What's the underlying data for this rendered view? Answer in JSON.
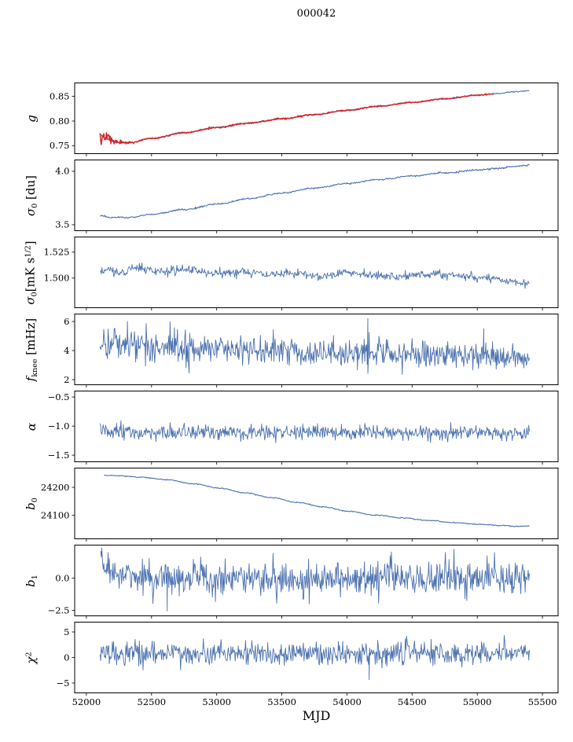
{
  "chart_data": {
    "type": "line",
    "title": "000042",
    "xlabel": "MJD",
    "xlim": [
      51910,
      55620
    ],
    "x_ticks": [
      52000,
      52500,
      53000,
      53500,
      54000,
      54500,
      55000,
      55500
    ],
    "x_tick_labels": [
      "52000",
      "52500",
      "53000",
      "53500",
      "54000",
      "54500",
      "55000",
      "55500"
    ],
    "colors": {
      "line_blue": "#4c72b0",
      "line_red": "#d62728",
      "axis": "#000000"
    },
    "panels": [
      {
        "id": "g",
        "label": [
          {
            "t": "g",
            "s": "i"
          }
        ],
        "ylim": [
          0.733,
          0.878
        ],
        "yticks": [
          0.75,
          0.8,
          0.85
        ],
        "ytick_labels": [
          "0.75",
          "0.80",
          "0.85"
        ],
        "series": [
          {
            "name": "gain-fit-blue",
            "color": "#4c72b0",
            "width": 1.1,
            "seed": 11,
            "n": 650,
            "x_start": 52105,
            "x_end": 55400,
            "trend": [
              [
                52105,
                0.774
              ],
              [
                52150,
                0.7638
              ],
              [
                52230,
                0.7566
              ],
              [
                52330,
                0.756
              ],
              [
                52500,
                0.7648
              ],
              [
                52750,
                0.7762
              ],
              [
                53000,
                0.7868
              ],
              [
                53250,
                0.796
              ],
              [
                53500,
                0.8046
              ],
              [
                53750,
                0.813
              ],
              [
                54000,
                0.8218
              ],
              [
                54250,
                0.83
              ],
              [
                54500,
                0.8378
              ],
              [
                54750,
                0.845
              ],
              [
                55000,
                0.8522
              ],
              [
                55150,
                0.8556
              ],
              [
                55280,
                0.859
              ],
              [
                55400,
                0.8618
              ]
            ],
            "noise": [
              [
                52105,
                0.0012
              ],
              [
                52300,
                0.0007
              ],
              [
                55400,
                0.0006
              ]
            ]
          },
          {
            "name": "gain-fit-red",
            "color": "#d62728",
            "width": 1.5,
            "seed": 5,
            "n": 620,
            "x_start": 52105,
            "x_end": 55120,
            "trend": [
              [
                52105,
                0.774
              ],
              [
                52150,
                0.7638
              ],
              [
                52230,
                0.7566
              ],
              [
                52330,
                0.756
              ],
              [
                52500,
                0.7648
              ],
              [
                52750,
                0.7762
              ],
              [
                53000,
                0.7868
              ],
              [
                53250,
                0.796
              ],
              [
                53500,
                0.8046
              ],
              [
                53750,
                0.813
              ],
              [
                54000,
                0.8218
              ],
              [
                54250,
                0.83
              ],
              [
                54500,
                0.8378
              ],
              [
                54750,
                0.845
              ],
              [
                55000,
                0.8522
              ],
              [
                55120,
                0.855
              ]
            ],
            "noise": [
              [
                52105,
                0.0115
              ],
              [
                52150,
                0.0075
              ],
              [
                52210,
                0.0045
              ],
              [
                52290,
                0.0018
              ],
              [
                52400,
                0.0008
              ],
              [
                55120,
                0.0006
              ]
            ]
          }
        ]
      },
      {
        "id": "sigma0-du",
        "label": [
          {
            "t": "σ",
            "s": "i"
          },
          {
            "t": "0",
            "s": "sub"
          },
          {
            "t": " [du]",
            "s": "n"
          }
        ],
        "ylim": [
          3.44,
          4.11
        ],
        "yticks": [
          3.5,
          4.0
        ],
        "ytick_labels": [
          "3.5",
          "4.0"
        ],
        "series": [
          {
            "name": "sigma0-du",
            "color": "#4c72b0",
            "width": 1.1,
            "seed": 21,
            "n": 650,
            "x_start": 52105,
            "x_end": 55400,
            "trend": [
              [
                52105,
                3.586
              ],
              [
                52200,
                3.566
              ],
              [
                52330,
                3.568
              ],
              [
                52500,
                3.597
              ],
              [
                52750,
                3.641
              ],
              [
                53000,
                3.692
              ],
              [
                53250,
                3.745
              ],
              [
                53500,
                3.797
              ],
              [
                53750,
                3.843
              ],
              [
                54000,
                3.885
              ],
              [
                54250,
                3.923
              ],
              [
                54500,
                3.956
              ],
              [
                54750,
                3.986
              ],
              [
                55000,
                4.012
              ],
              [
                55150,
                4.028
              ],
              [
                55300,
                4.047
              ],
              [
                55400,
                4.058
              ]
            ],
            "noise": [
              [
                52105,
                0.004
              ],
              [
                55400,
                0.004
              ]
            ]
          }
        ]
      },
      {
        "id": "sigma0-noise",
        "label": [
          {
            "t": "σ",
            "s": "i"
          },
          {
            "t": "0",
            "s": "sub"
          },
          {
            "t": "[mK s",
            "s": "n"
          },
          {
            "t": "1/2",
            "s": "sup"
          },
          {
            "t": "]",
            "s": "n"
          }
        ],
        "ylim": [
          1.471,
          1.54
        ],
        "yticks": [
          1.5,
          1.525
        ],
        "ytick_labels": [
          "1.500",
          "1.525"
        ],
        "series": [
          {
            "name": "sigma0-noise",
            "color": "#4c72b0",
            "width": 0.9,
            "seed": 31,
            "n": 700,
            "x_start": 52105,
            "x_end": 55400,
            "trend": [
              [
                52105,
                1.5055
              ],
              [
                52180,
                1.5085
              ],
              [
                52260,
                1.504
              ],
              [
                52360,
                1.511
              ],
              [
                52450,
                1.508
              ],
              [
                52600,
                1.5065
              ],
              [
                52800,
                1.508
              ],
              [
                53000,
                1.504
              ],
              [
                53200,
                1.5065
              ],
              [
                53400,
                1.503
              ],
              [
                53600,
                1.5048
              ],
              [
                53800,
                1.5022
              ],
              [
                54000,
                1.5055
              ],
              [
                54200,
                1.5032
              ],
              [
                54400,
                1.5012
              ],
              [
                54600,
                1.5038
              ],
              [
                54800,
                1.5028
              ],
              [
                55000,
                1.5008
              ],
              [
                55150,
                1.4992
              ],
              [
                55280,
                1.4975
              ],
              [
                55400,
                1.4938
              ]
            ],
            "noise": [
              [
                52105,
                0.0021
              ],
              [
                55400,
                0.0021
              ]
            ]
          }
        ]
      },
      {
        "id": "fknee",
        "label": [
          {
            "t": "f",
            "s": "i"
          },
          {
            "t": "knee",
            "s": "sub"
          },
          {
            "t": " [mHz]",
            "s": "n"
          }
        ],
        "ylim": [
          1.62,
          6.54
        ],
        "yticks": [
          2,
          4,
          6
        ],
        "ytick_labels": [
          "2",
          "4",
          "6"
        ],
        "series": [
          {
            "name": "fknee",
            "color": "#4c72b0",
            "width": 0.9,
            "seed": 41,
            "n": 700,
            "x_start": 52105,
            "x_end": 55400,
            "trend": [
              [
                52105,
                4.62
              ],
              [
                52300,
                4.45
              ],
              [
                52500,
                4.32
              ],
              [
                52800,
                4.2
              ],
              [
                53100,
                4.1
              ],
              [
                53400,
                4.0
              ],
              [
                53700,
                3.92
              ],
              [
                54000,
                3.85
              ],
              [
                54300,
                3.78
              ],
              [
                54600,
                3.7
              ],
              [
                54900,
                3.65
              ],
              [
                55200,
                3.6
              ],
              [
                55400,
                3.55
              ]
            ],
            "noise": [
              [
                52105,
                0.6
              ],
              [
                52700,
                0.52
              ],
              [
                53400,
                0.5
              ],
              [
                55400,
                0.47
              ]
            ],
            "spikes": [
              [
                52315,
                6.0
              ],
              [
                54160,
                6.2
              ],
              [
                55050,
                5.5
              ]
            ]
          }
        ]
      },
      {
        "id": "alpha",
        "label": [
          {
            "t": "α",
            "s": "i"
          }
        ],
        "ylim": [
          -1.62,
          -0.39
        ],
        "yticks": [
          -1.5,
          -1.0,
          -0.5
        ],
        "ytick_labels": [
          "−1.5",
          "−1.0",
          "−0.5"
        ],
        "series": [
          {
            "name": "alpha",
            "color": "#4c72b0",
            "width": 0.9,
            "seed": 51,
            "n": 700,
            "x_start": 52105,
            "x_end": 55400,
            "trend": [
              [
                52105,
                -1.098
              ],
              [
                52350,
                -1.115
              ],
              [
                54000,
                -1.118
              ],
              [
                55400,
                -1.124
              ]
            ],
            "noise": [
              [
                52105,
                0.082
              ],
              [
                52400,
                0.062
              ],
              [
                55400,
                0.062
              ]
            ]
          }
        ]
      },
      {
        "id": "b0",
        "label": [
          {
            "t": "b",
            "s": "i"
          },
          {
            "t": "0",
            "s": "sub"
          }
        ],
        "ylim": [
          24015,
          24270
        ],
        "yticks": [
          24100,
          24200
        ],
        "ytick_labels": [
          "24100",
          "24200"
        ],
        "series": [
          {
            "name": "b0",
            "color": "#4c72b0",
            "width": 1.1,
            "seed": 61,
            "n": 650,
            "x_start": 52135,
            "x_end": 55400,
            "trend": [
              [
                52135,
                24243
              ],
              [
                52260,
                24241
              ],
              [
                52420,
                24236
              ],
              [
                52620,
                24227
              ],
              [
                52820,
                24213
              ],
              [
                53020,
                24197
              ],
              [
                53220,
                24180
              ],
              [
                53420,
                24163
              ],
              [
                53620,
                24146
              ],
              [
                53820,
                24130
              ],
              [
                54020,
                24114
              ],
              [
                54220,
                24101
              ],
              [
                54420,
                24091
              ],
              [
                54620,
                24082
              ],
              [
                54820,
                24074
              ],
              [
                55020,
                24068
              ],
              [
                55170,
                24064
              ],
              [
                55300,
                24061
              ],
              [
                55400,
                24062
              ]
            ],
            "noise": [
              [
                52135,
                0.9
              ],
              [
                55400,
                0.9
              ]
            ]
          }
        ]
      },
      {
        "id": "b1",
        "label": [
          {
            "t": "b",
            "s": "i"
          },
          {
            "t": "1",
            "s": "sub"
          }
        ],
        "ylim": [
          -2.95,
          2.6
        ],
        "yticks": [
          0.0,
          -2.5
        ],
        "ytick_labels": [
          "0.0",
          "−2.5"
        ],
        "series": [
          {
            "name": "b1",
            "color": "#4c72b0",
            "width": 0.9,
            "seed": 71,
            "n": 700,
            "x_start": 52110,
            "x_end": 55400,
            "trend": [
              [
                52110,
                1.9
              ],
              [
                52150,
                0.8
              ],
              [
                52230,
                0.25
              ],
              [
                52400,
                0.05
              ],
              [
                52700,
                0.0
              ],
              [
                55400,
                0.0
              ]
            ],
            "noise": [
              [
                52110,
                0.5
              ],
              [
                52250,
                0.62
              ],
              [
                52500,
                0.66
              ],
              [
                55400,
                0.66
              ]
            ],
            "spikes": [
              [
                52118,
                2.35
              ],
              [
                52620,
                -2.55
              ]
            ]
          }
        ]
      },
      {
        "id": "chi2",
        "label": [
          {
            "t": "χ",
            "s": "i"
          },
          {
            "t": "2",
            "s": "sup"
          }
        ],
        "ylim": [
          -7,
          7
        ],
        "yticks": [
          -5,
          0,
          5
        ],
        "ytick_labels": [
          "−5",
          "0",
          "5"
        ],
        "series": [
          {
            "name": "chi2",
            "color": "#4c72b0",
            "width": 0.9,
            "seed": 81,
            "n": 700,
            "x_start": 52105,
            "x_end": 55400,
            "trend": [
              [
                52105,
                0.85
              ],
              [
                55400,
                0.85
              ]
            ],
            "noise": [
              [
                52105,
                1.12
              ],
              [
                55400,
                1.12
              ]
            ],
            "spikes": [
              [
                54170,
                -4.35
              ]
            ]
          }
        ]
      }
    ]
  }
}
